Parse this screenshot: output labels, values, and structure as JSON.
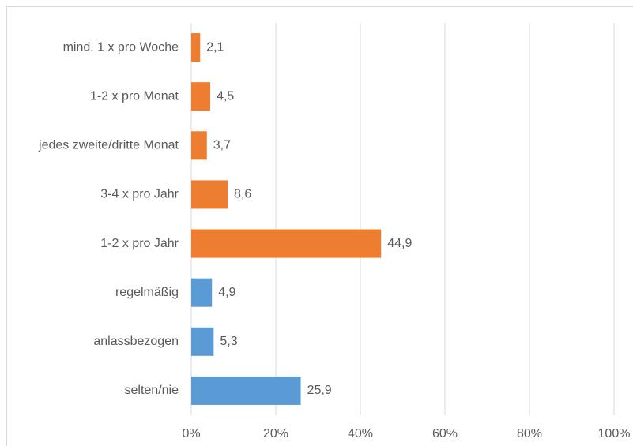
{
  "chart_data": {
    "type": "hbar",
    "categories": [
      "mind. 1 x pro Woche",
      "1-2 x pro Monat",
      "jedes zweite/dritte Monat",
      "3-4 x pro Jahr",
      "1-2 x pro Jahr",
      "regelmäßig",
      "anlassbezogen",
      "selten/nie"
    ],
    "values": [
      2.1,
      4.5,
      3.7,
      8.6,
      44.9,
      4.9,
      5.3,
      25.9
    ],
    "value_labels": [
      "2,1",
      "4,5",
      "3,7",
      "8,6",
      "44,9",
      "4,9",
      "5,3",
      "25,9"
    ],
    "colors": [
      "#ed7d31",
      "#ed7d31",
      "#ed7d31",
      "#ed7d31",
      "#ed7d31",
      "#5b9bd5",
      "#5b9bd5",
      "#5b9bd5"
    ],
    "xlim": [
      0,
      100
    ],
    "xticks": [
      {
        "value": 0,
        "label": "0%"
      },
      {
        "value": 20,
        "label": "20%"
      },
      {
        "value": 40,
        "label": "40%"
      },
      {
        "value": 60,
        "label": "60%"
      },
      {
        "value": 80,
        "label": "80%"
      },
      {
        "value": 100,
        "label": "100%"
      }
    ],
    "grid": true
  }
}
